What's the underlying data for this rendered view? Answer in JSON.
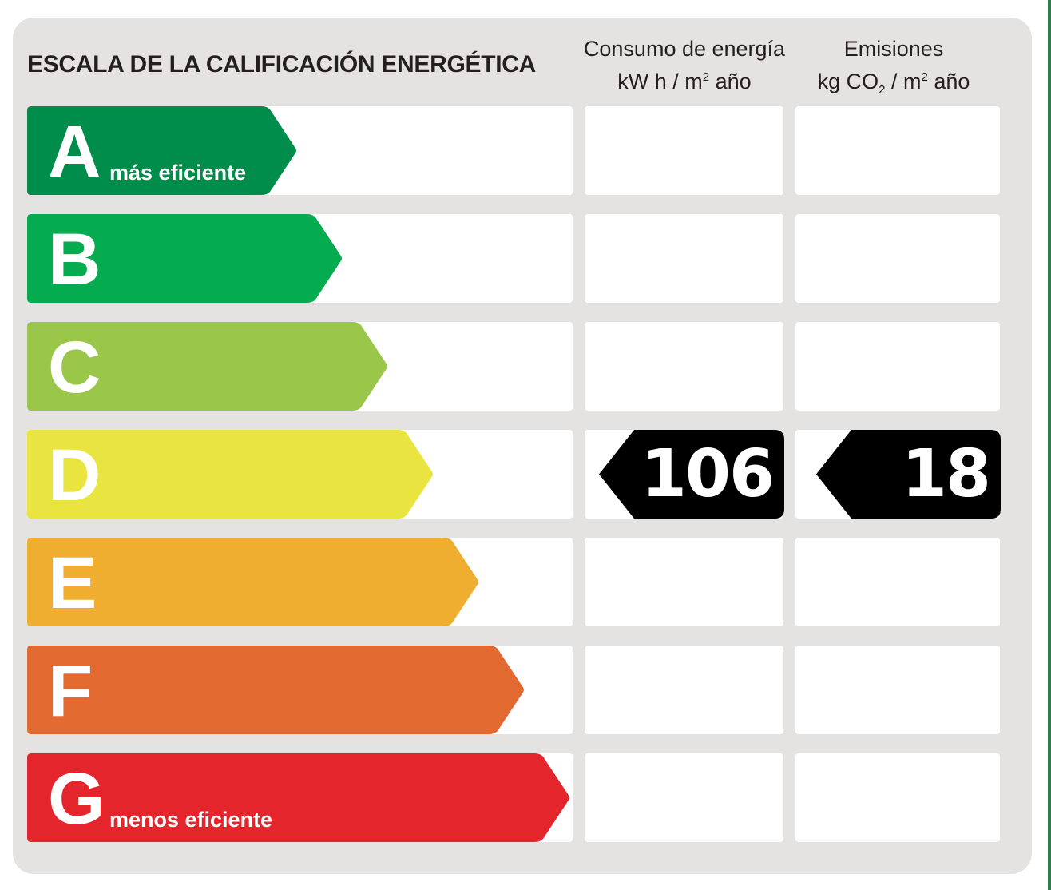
{
  "title": "ESCALA DE LA CALIFICACIÓN ENERGÉTICA",
  "columns": {
    "energy": {
      "line1": "Consumo de energía",
      "line2_pre": "kW h  / m",
      "line2_sup": "2",
      "line2_post": " año"
    },
    "emissions": {
      "line1": "Emisiones",
      "line2_pre": "kg CO",
      "line2_sub": "2",
      "line2_mid": "  / m",
      "line2_sup": "2",
      "line2_post": " año"
    }
  },
  "ratings": [
    {
      "letter": "A",
      "label": "más eficiente",
      "color": "#008c4a"
    },
    {
      "letter": "B",
      "label": "",
      "color": "#05ab4f"
    },
    {
      "letter": "C",
      "label": "",
      "color": "#9ac74a"
    },
    {
      "letter": "D",
      "label": "",
      "color": "#eae440"
    },
    {
      "letter": "E",
      "label": "",
      "color": "#f0ae31"
    },
    {
      "letter": "F",
      "label": "",
      "color": "#e26a30"
    },
    {
      "letter": "G",
      "label": "menos eficiente",
      "color": "#e5252c"
    }
  ],
  "result": {
    "rating": "D",
    "energy_value": "106",
    "emissions_value": "18",
    "marker_color": "#000000"
  }
}
